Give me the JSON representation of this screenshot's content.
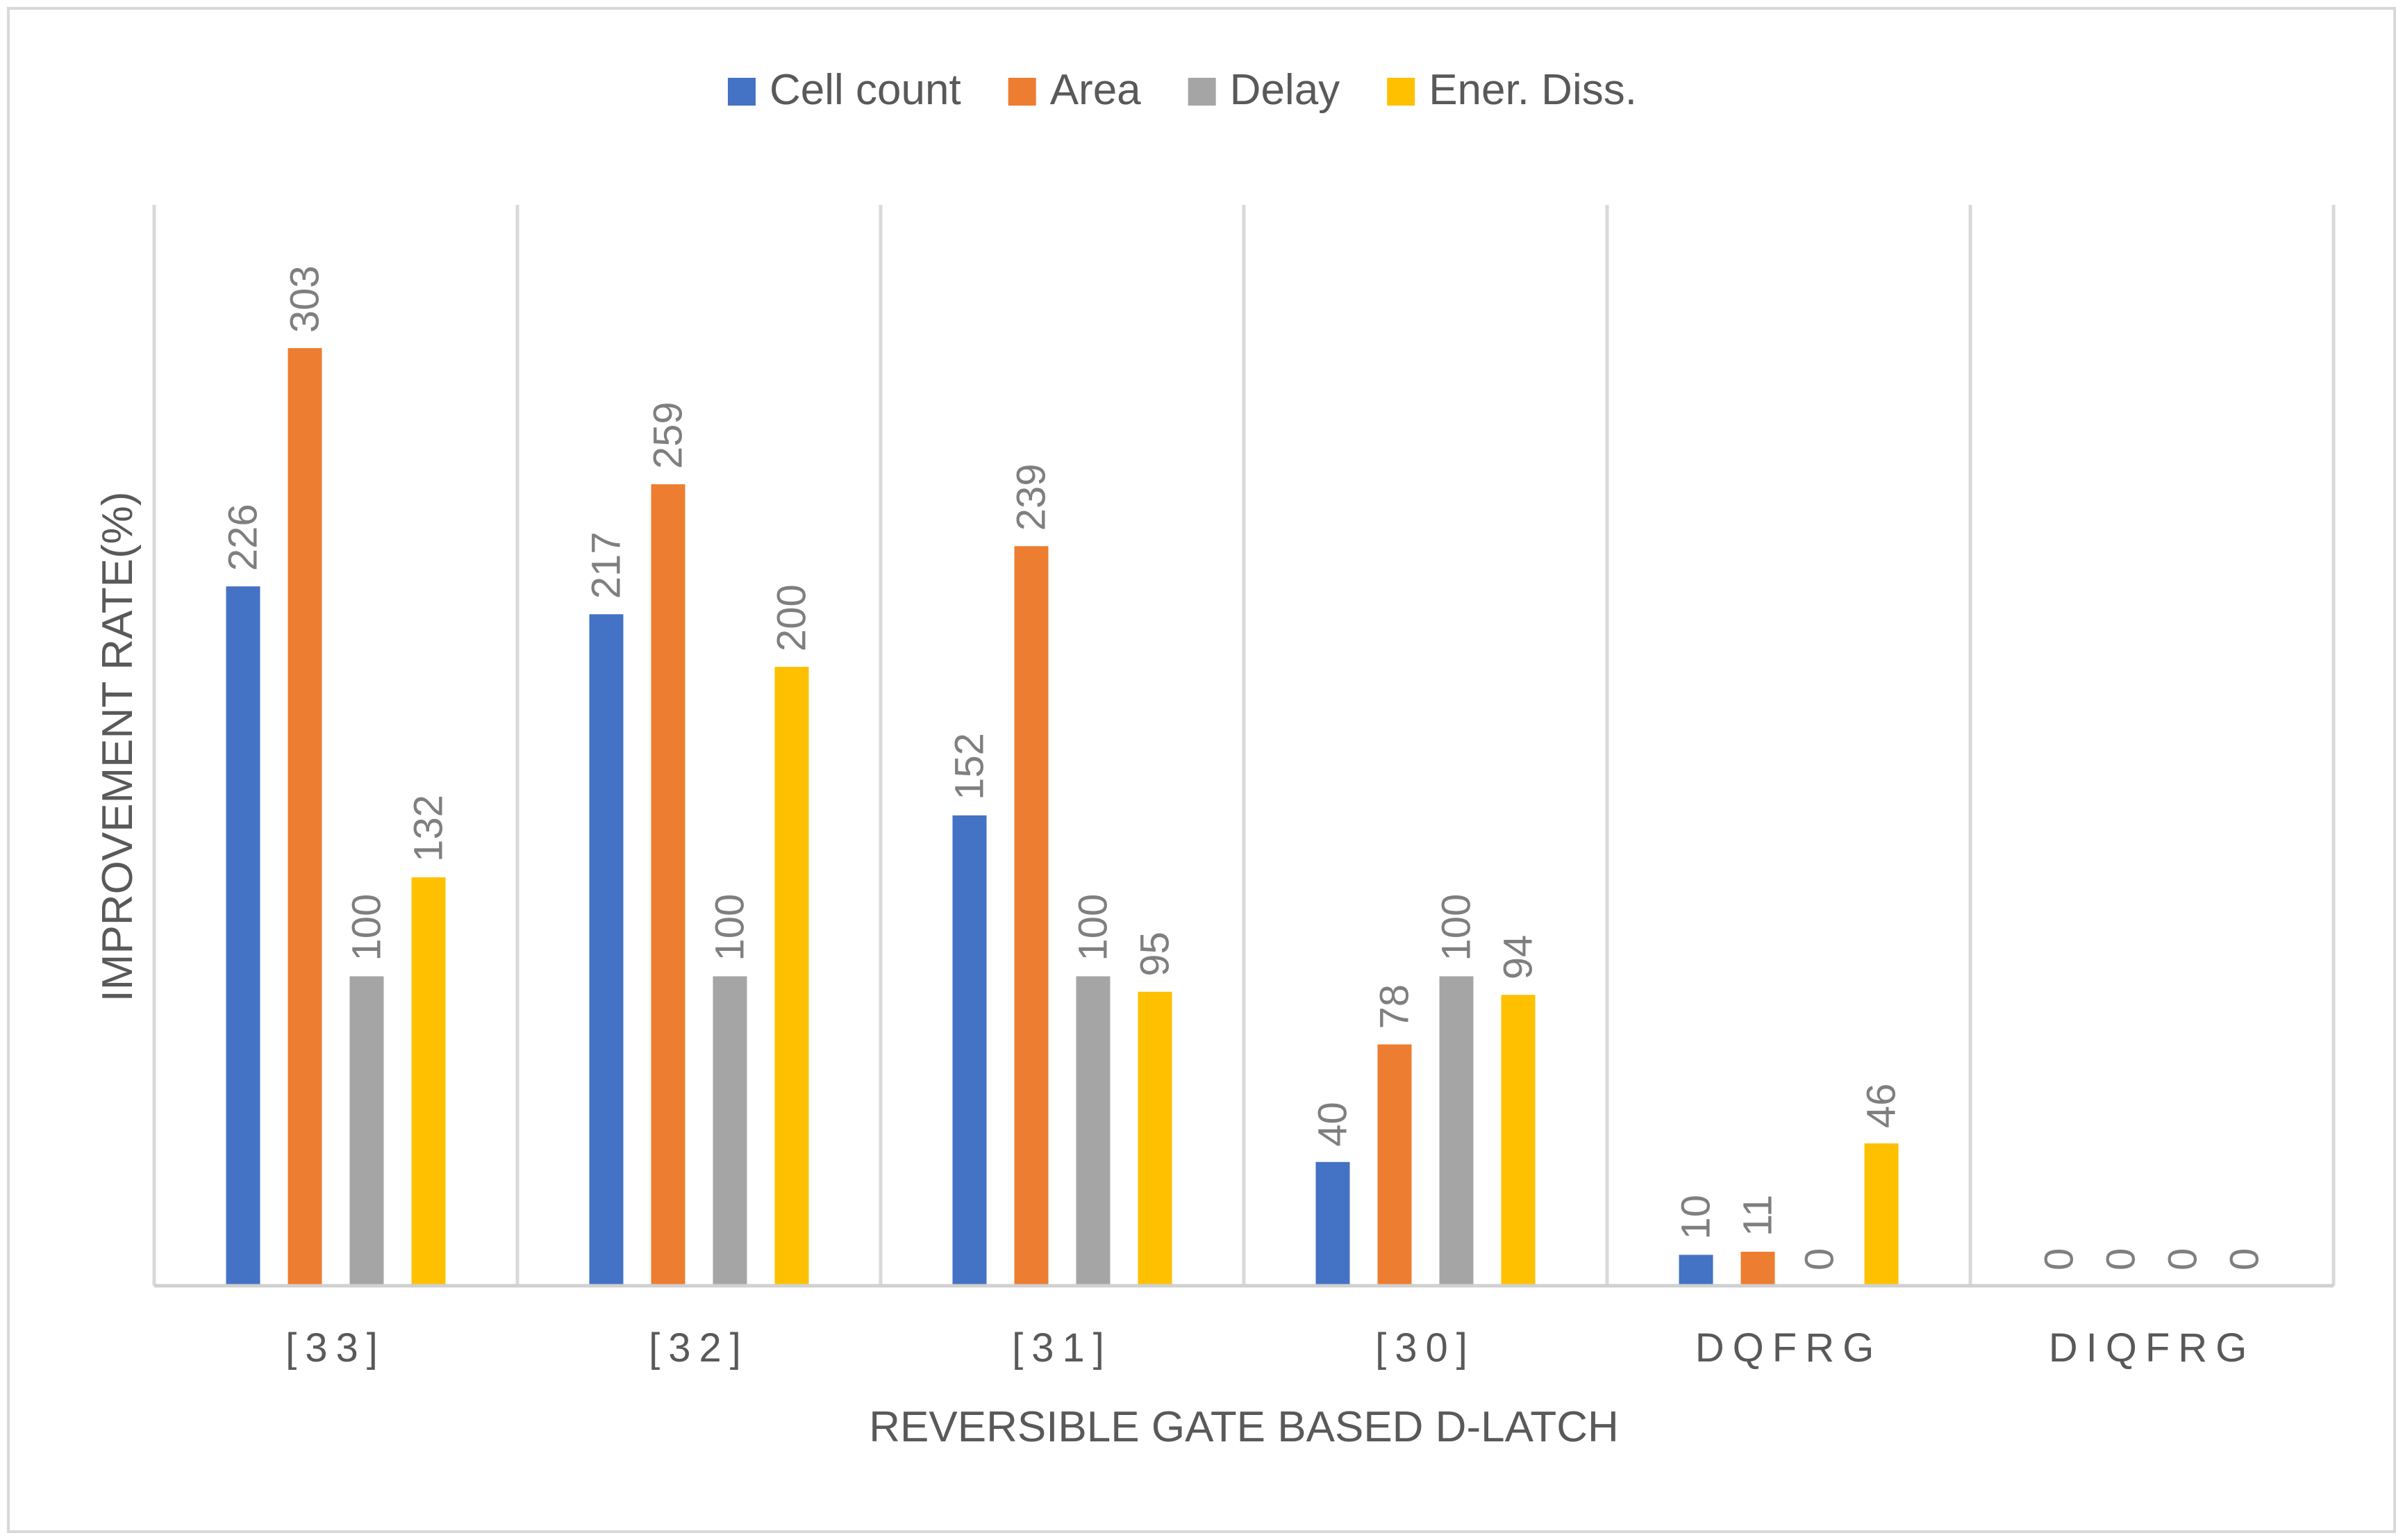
{
  "chart_data": {
    "type": "bar",
    "title": "",
    "xlabel": "REVERSIBLE GATE BASED D-LATCH",
    "ylabel": "IMPROVEMENT RATE(%)",
    "categories": [
      "[33]",
      "[32]",
      "[31]",
      "[30]",
      "DQFRG",
      "DIQFRG"
    ],
    "series": [
      {
        "name": "Cell count",
        "color": "#4472C4",
        "values": [
          226,
          217,
          152,
          40,
          10,
          0
        ]
      },
      {
        "name": "Area",
        "color": "#ED7D31",
        "values": [
          303,
          259,
          239,
          78,
          11,
          0
        ]
      },
      {
        "name": "Delay",
        "color": "#A5A5A5",
        "values": [
          100,
          100,
          100,
          100,
          0,
          0
        ]
      },
      {
        "name": "Ener. Diss.",
        "color": "#FFC000",
        "values": [
          132,
          200,
          95,
          94,
          46,
          0
        ]
      }
    ],
    "ylim": [
      0,
      400
    ],
    "grid": false,
    "legend": "top-center",
    "data_labels": true
  }
}
